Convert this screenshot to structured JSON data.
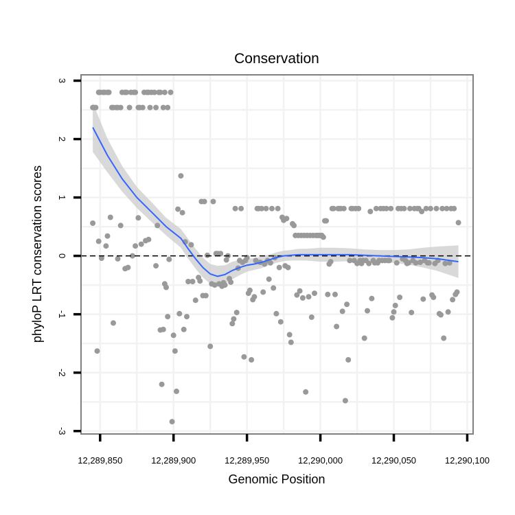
{
  "chart_data": {
    "type": "scatter",
    "title": "Conservation",
    "xlabel": "Genomic Position",
    "ylabel": "phyloP LRT conservation scores",
    "xlim": [
      12289837,
      12290104
    ],
    "ylim": [
      -3.05,
      3.1
    ],
    "x_ticks": [
      12289850,
      12289900,
      12289950,
      12290000,
      12290050,
      12290100
    ],
    "x_tick_labels": [
      "12,289,850",
      "12,289,900",
      "12,289,950",
      "12,290,000",
      "12,290,050",
      "12,290,100"
    ],
    "y_ticks": [
      -3,
      -2,
      -1,
      0,
      1,
      2,
      3
    ],
    "y_tick_labels": [
      "-3",
      "-2",
      "-1",
      "0",
      "1",
      "2",
      "3"
    ],
    "reference_line": {
      "y": 0,
      "style": "dashed",
      "color": "#000000"
    },
    "colors": {
      "points": "#999999",
      "smooth": "#3366ff",
      "confidence_band": "#cccccc",
      "panel_border": "#7f7f7f"
    },
    "points": [
      {
        "x": 12289845,
        "y": 2.54
      },
      {
        "x": 12289846,
        "y": 2.54
      },
      {
        "x": 12289847,
        "y": 2.54
      },
      {
        "x": 12289849,
        "y": 2.8
      },
      {
        "x": 12289850,
        "y": 2.8
      },
      {
        "x": 12289852,
        "y": 2.8
      },
      {
        "x": 12289853,
        "y": 2.8
      },
      {
        "x": 12289855,
        "y": 2.8
      },
      {
        "x": 12289856,
        "y": 2.8
      },
      {
        "x": 12289858,
        "y": 2.54
      },
      {
        "x": 12289859,
        "y": 2.54
      },
      {
        "x": 12289861,
        "y": 2.54
      },
      {
        "x": 12289862,
        "y": 2.54
      },
      {
        "x": 12289864,
        "y": 2.54
      },
      {
        "x": 12289865,
        "y": 2.8
      },
      {
        "x": 12289867,
        "y": 2.8
      },
      {
        "x": 12289868,
        "y": 2.8
      },
      {
        "x": 12289870,
        "y": 2.54
      },
      {
        "x": 12289871,
        "y": 2.8
      },
      {
        "x": 12289873,
        "y": 2.8
      },
      {
        "x": 12289874,
        "y": 2.8
      },
      {
        "x": 12289876,
        "y": 2.54
      },
      {
        "x": 12289877,
        "y": 2.54
      },
      {
        "x": 12289879,
        "y": 2.54
      },
      {
        "x": 12289880,
        "y": 2.8
      },
      {
        "x": 12289882,
        "y": 2.8
      },
      {
        "x": 12289883,
        "y": 2.8
      },
      {
        "x": 12289884,
        "y": 2.54
      },
      {
        "x": 12289885,
        "y": 2.8
      },
      {
        "x": 12289887,
        "y": 2.8
      },
      {
        "x": 12289888,
        "y": 2.54
      },
      {
        "x": 12289890,
        "y": 2.8
      },
      {
        "x": 12289891,
        "y": 2.8
      },
      {
        "x": 12289893,
        "y": 2.54
      },
      {
        "x": 12289894,
        "y": 2.8
      },
      {
        "x": 12289896,
        "y": 2.54
      },
      {
        "x": 12289898,
        "y": 2.8
      },
      {
        "x": 12289845,
        "y": 0.56
      },
      {
        "x": 12289848,
        "y": -1.63
      },
      {
        "x": 12289849,
        "y": 0.25
      },
      {
        "x": 12289851,
        "y": -0.04
      },
      {
        "x": 12289854,
        "y": 0.17
      },
      {
        "x": 12289855,
        "y": 0.34
      },
      {
        "x": 12289857,
        "y": 0.66
      },
      {
        "x": 12289859,
        "y": -1.15
      },
      {
        "x": 12289862,
        "y": -0.05
      },
      {
        "x": 12289864,
        "y": 0.52
      },
      {
        "x": 12289867,
        "y": -0.22
      },
      {
        "x": 12289869,
        "y": -0.2
      },
      {
        "x": 12289872,
        "y": 0.0
      },
      {
        "x": 12289874,
        "y": 0.17
      },
      {
        "x": 12289876,
        "y": 0.65
      },
      {
        "x": 12289878,
        "y": 0.2
      },
      {
        "x": 12289881,
        "y": 0.26
      },
      {
        "x": 12289883,
        "y": 0.28
      },
      {
        "x": 12289888,
        "y": -0.17
      },
      {
        "x": 12289889,
        "y": 0.52
      },
      {
        "x": 12289891,
        "y": -1.27
      },
      {
        "x": 12289892,
        "y": -2.2
      },
      {
        "x": 12289893,
        "y": -1.26
      },
      {
        "x": 12289894,
        "y": -0.48
      },
      {
        "x": 12289895,
        "y": -0.54
      },
      {
        "x": 12289896,
        "y": -1.04
      },
      {
        "x": 12289897,
        "y": -0.06
      },
      {
        "x": 12289899,
        "y": -2.84
      },
      {
        "x": 12289900,
        "y": -1.36
      },
      {
        "x": 12289901,
        "y": -1.63
      },
      {
        "x": 12289902,
        "y": -2.32
      },
      {
        "x": 12289903,
        "y": 0.8
      },
      {
        "x": 12289904,
        "y": -0.99
      },
      {
        "x": 12289905,
        "y": 1.37
      },
      {
        "x": 12289906,
        "y": 0.74
      },
      {
        "x": 12289907,
        "y": -1.26
      },
      {
        "x": 12289908,
        "y": 0.24
      },
      {
        "x": 12289909,
        "y": -1.04
      },
      {
        "x": 12289910,
        "y": -0.44
      },
      {
        "x": 12289912,
        "y": 0.19
      },
      {
        "x": 12289913,
        "y": -0.44
      },
      {
        "x": 12289915,
        "y": -0.76
      },
      {
        "x": 12289917,
        "y": -0.37
      },
      {
        "x": 12289918,
        "y": -0.43
      },
      {
        "x": 12289919,
        "y": 0.93
      },
      {
        "x": 12289920,
        "y": -0.68
      },
      {
        "x": 12289921,
        "y": 0.93
      },
      {
        "x": 12289922,
        "y": -0.68
      },
      {
        "x": 12289923,
        "y": 0.01
      },
      {
        "x": 12289925,
        "y": -1.55
      },
      {
        "x": 12289927,
        "y": 0.93
      },
      {
        "x": 12289926,
        "y": -0.48
      },
      {
        "x": 12289928,
        "y": -0.5
      },
      {
        "x": 12289929,
        "y": 0.04
      },
      {
        "x": 12289930,
        "y": 0.04
      },
      {
        "x": 12289931,
        "y": -0.48
      },
      {
        "x": 12289932,
        "y": 0.04
      },
      {
        "x": 12289933,
        "y": -0.52
      },
      {
        "x": 12289934,
        "y": -0.46
      },
      {
        "x": 12289935,
        "y": -0.5
      },
      {
        "x": 12289936,
        "y": -0.07
      },
      {
        "x": 12289937,
        "y": 0.0
      },
      {
        "x": 12289938,
        "y": -0.39
      },
      {
        "x": 12289939,
        "y": -0.45
      },
      {
        "x": 12289940,
        "y": -1.16
      },
      {
        "x": 12289941,
        "y": -1.08
      },
      {
        "x": 12289942,
        "y": 0.81
      },
      {
        "x": 12289943,
        "y": -0.97
      },
      {
        "x": 12289944,
        "y": -0.21
      },
      {
        "x": 12289945,
        "y": -0.08
      },
      {
        "x": 12289946,
        "y": 0.81
      },
      {
        "x": 12289947,
        "y": -0.11
      },
      {
        "x": 12289948,
        "y": -1.73
      },
      {
        "x": 12289949,
        "y": -0.08
      },
      {
        "x": 12289950,
        "y": -0.03
      },
      {
        "x": 12289951,
        "y": -0.64
      },
      {
        "x": 12289952,
        "y": -0.59
      },
      {
        "x": 12289953,
        "y": -1.78
      },
      {
        "x": 12289954,
        "y": -0.75
      },
      {
        "x": 12289955,
        "y": -0.7
      },
      {
        "x": 12289956,
        "y": -0.08
      },
      {
        "x": 12289957,
        "y": 0.81
      },
      {
        "x": 12289958,
        "y": 0.81
      },
      {
        "x": 12289959,
        "y": -0.11
      },
      {
        "x": 12289960,
        "y": 0.81
      },
      {
        "x": 12289961,
        "y": -0.62
      },
      {
        "x": 12289962,
        "y": -0.14
      },
      {
        "x": 12289963,
        "y": 0.81
      },
      {
        "x": 12289964,
        "y": -0.08
      },
      {
        "x": 12289965,
        "y": -0.4
      },
      {
        "x": 12289966,
        "y": -0.12
      },
      {
        "x": 12289967,
        "y": 0.81
      },
      {
        "x": 12289968,
        "y": -0.55
      },
      {
        "x": 12289969,
        "y": -0.03
      },
      {
        "x": 12289970,
        "y": -0.99
      },
      {
        "x": 12289971,
        "y": 0.81
      },
      {
        "x": 12289972,
        "y": -0.2
      },
      {
        "x": 12289973,
        "y": -1.13
      },
      {
        "x": 12289974,
        "y": 0.66
      },
      {
        "x": 12289975,
        "y": 0.61
      },
      {
        "x": 12289976,
        "y": -0.17
      },
      {
        "x": 12289977,
        "y": 0.64
      },
      {
        "x": 12289978,
        "y": -0.2
      },
      {
        "x": 12289979,
        "y": -1.35
      },
      {
        "x": 12289980,
        "y": -1.48
      },
      {
        "x": 12289981,
        "y": 0.55
      },
      {
        "x": 12289982,
        "y": 0.52
      },
      {
        "x": 12289983,
        "y": 0.35
      },
      {
        "x": 12289984,
        "y": -0.67
      },
      {
        "x": 12289985,
        "y": 0.35
      },
      {
        "x": 12289986,
        "y": -0.6
      },
      {
        "x": 12289987,
        "y": 0.35
      },
      {
        "x": 12289988,
        "y": -0.72
      },
      {
        "x": 12289989,
        "y": 0.35
      },
      {
        "x": 12289990,
        "y": -2.33
      },
      {
        "x": 12289991,
        "y": 0.35
      },
      {
        "x": 12289992,
        "y": -0.7
      },
      {
        "x": 12289993,
        "y": 0.35
      },
      {
        "x": 12289994,
        "y": -1.05
      },
      {
        "x": 12289995,
        "y": 0.35
      },
      {
        "x": 12289996,
        "y": -0.64
      },
      {
        "x": 12289997,
        "y": 0.35
      },
      {
        "x": 12289998,
        "y": 0.35
      },
      {
        "x": 12289999,
        "y": 0.35
      },
      {
        "x": 12290000,
        "y": 0.35
      },
      {
        "x": 12290001,
        "y": 0.35
      },
      {
        "x": 12290002,
        "y": 0.32
      },
      {
        "x": 12290003,
        "y": 0.6
      },
      {
        "x": 12290004,
        "y": 0.6
      },
      {
        "x": 12290005,
        "y": -0.66
      },
      {
        "x": 12290006,
        "y": -0.14
      },
      {
        "x": 12290007,
        "y": -0.1
      },
      {
        "x": 12290008,
        "y": 0.81
      },
      {
        "x": 12290009,
        "y": 0.81
      },
      {
        "x": 12290010,
        "y": -0.66
      },
      {
        "x": 12290011,
        "y": -1.21
      },
      {
        "x": 12290012,
        "y": 0.81
      },
      {
        "x": 12290013,
        "y": 0.81
      },
      {
        "x": 12290014,
        "y": 0.81
      },
      {
        "x": 12290015,
        "y": -0.95
      },
      {
        "x": 12290016,
        "y": 0.81
      },
      {
        "x": 12290017,
        "y": -2.48
      },
      {
        "x": 12290018,
        "y": -0.83
      },
      {
        "x": 12290019,
        "y": -1.78
      },
      {
        "x": 12290020,
        "y": -0.08
      },
      {
        "x": 12290021,
        "y": 0.81
      },
      {
        "x": 12290022,
        "y": 0.81
      },
      {
        "x": 12290023,
        "y": -0.08
      },
      {
        "x": 12290024,
        "y": 0.81
      },
      {
        "x": 12290025,
        "y": -0.13
      },
      {
        "x": 12290026,
        "y": 0.81
      },
      {
        "x": 12290027,
        "y": -0.08
      },
      {
        "x": 12290028,
        "y": -0.13
      },
      {
        "x": 12290029,
        "y": -0.08
      },
      {
        "x": 12290030,
        "y": -1.41
      },
      {
        "x": 12290031,
        "y": -0.08
      },
      {
        "x": 12290032,
        "y": -0.94
      },
      {
        "x": 12290033,
        "y": -0.13
      },
      {
        "x": 12290034,
        "y": 0.76
      },
      {
        "x": 12290035,
        "y": -0.73
      },
      {
        "x": 12290036,
        "y": -0.08
      },
      {
        "x": 12290037,
        "y": -0.12
      },
      {
        "x": 12290038,
        "y": 0.81
      },
      {
        "x": 12290039,
        "y": -0.12
      },
      {
        "x": 12290040,
        "y": -0.08
      },
      {
        "x": 12290041,
        "y": 0.81
      },
      {
        "x": 12290042,
        "y": -0.08
      },
      {
        "x": 12290043,
        "y": 0.81
      },
      {
        "x": 12290044,
        "y": -0.08
      },
      {
        "x": 12290045,
        "y": 0.81
      },
      {
        "x": 12290046,
        "y": -0.08
      },
      {
        "x": 12290047,
        "y": -0.08
      },
      {
        "x": 12290048,
        "y": 0.81
      },
      {
        "x": 12290049,
        "y": -1.06
      },
      {
        "x": 12290050,
        "y": -0.96
      },
      {
        "x": 12290051,
        "y": -0.85
      },
      {
        "x": 12290052,
        "y": -0.12
      },
      {
        "x": 12290053,
        "y": 0.81
      },
      {
        "x": 12290054,
        "y": -0.71
      },
      {
        "x": 12290055,
        "y": 0.81
      },
      {
        "x": 12290056,
        "y": -0.05
      },
      {
        "x": 12290057,
        "y": 0.81
      },
      {
        "x": 12290058,
        "y": -0.08
      },
      {
        "x": 12290059,
        "y": -0.13
      },
      {
        "x": 12290060,
        "y": -0.12
      },
      {
        "x": 12290061,
        "y": 0.81
      },
      {
        "x": 12290062,
        "y": -0.97
      },
      {
        "x": 12290063,
        "y": -0.08
      },
      {
        "x": 12290064,
        "y": 0.81
      },
      {
        "x": 12290065,
        "y": -0.12
      },
      {
        "x": 12290066,
        "y": 0.81
      },
      {
        "x": 12290067,
        "y": 0.81
      },
      {
        "x": 12290068,
        "y": -0.11
      },
      {
        "x": 12290069,
        "y": 0.76
      },
      {
        "x": 12290070,
        "y": -0.74
      },
      {
        "x": 12290071,
        "y": -0.08
      },
      {
        "x": 12290072,
        "y": 0.81
      },
      {
        "x": 12290073,
        "y": -0.12
      },
      {
        "x": 12290074,
        "y": -0.12
      },
      {
        "x": 12290075,
        "y": 0.81
      },
      {
        "x": 12290076,
        "y": -0.67
      },
      {
        "x": 12290077,
        "y": -0.71
      },
      {
        "x": 12290078,
        "y": -0.13
      },
      {
        "x": 12290079,
        "y": 0.81
      },
      {
        "x": 12290080,
        "y": -0.08
      },
      {
        "x": 12290081,
        "y": -0.99
      },
      {
        "x": 12290082,
        "y": -1.01
      },
      {
        "x": 12290083,
        "y": 0.81
      },
      {
        "x": 12290084,
        "y": -1.41
      },
      {
        "x": 12290085,
        "y": -0.13
      },
      {
        "x": 12290086,
        "y": 0.81
      },
      {
        "x": 12290087,
        "y": -0.96
      },
      {
        "x": 12290088,
        "y": -0.12
      },
      {
        "x": 12290089,
        "y": 0.81
      },
      {
        "x": 12290090,
        "y": -0.75
      },
      {
        "x": 12290091,
        "y": 0.81
      },
      {
        "x": 12290092,
        "y": -0.66
      },
      {
        "x": 12290093,
        "y": -0.62
      },
      {
        "x": 12290094,
        "y": 0.57
      }
    ],
    "smooth_line": {
      "x": [
        12289845,
        12289855,
        12289865,
        12289875,
        12289885,
        12289895,
        12289905,
        12289910,
        12289915,
        12289920,
        12289925,
        12289930,
        12289935,
        12289940,
        12289945,
        12289950,
        12289955,
        12289960,
        12289965,
        12289970,
        12289975,
        12289980,
        12289985,
        12289990,
        12289995,
        12290000,
        12290010,
        12290020,
        12290030,
        12290040,
        12290050,
        12290060,
        12290070,
        12290080,
        12290094
      ],
      "y": [
        2.2,
        1.72,
        1.32,
        1.0,
        0.75,
        0.5,
        0.3,
        0.12,
        -0.05,
        -0.2,
        -0.31,
        -0.35,
        -0.32,
        -0.25,
        -0.2,
        -0.16,
        -0.14,
        -0.11,
        -0.07,
        -0.03,
        0.0,
        0.01,
        0.02,
        0.02,
        0.02,
        0.02,
        0.02,
        0.02,
        0.01,
        0.0,
        -0.01,
        -0.02,
        -0.03,
        -0.05,
        -0.1
      ],
      "lower": [
        1.78,
        1.43,
        1.1,
        0.82,
        0.58,
        0.35,
        0.14,
        -0.05,
        -0.22,
        -0.37,
        -0.48,
        -0.53,
        -0.48,
        -0.4,
        -0.33,
        -0.27,
        -0.24,
        -0.21,
        -0.16,
        -0.12,
        -0.09,
        -0.08,
        -0.08,
        -0.08,
        -0.09,
        -0.1,
        -0.1,
        -0.09,
        -0.09,
        -0.1,
        -0.12,
        -0.15,
        -0.2,
        -0.26,
        -0.38
      ],
      "upper": [
        2.62,
        2.01,
        1.54,
        1.18,
        0.92,
        0.65,
        0.46,
        0.29,
        0.12,
        -0.03,
        -0.14,
        -0.17,
        -0.16,
        -0.1,
        -0.07,
        -0.05,
        -0.04,
        -0.01,
        0.02,
        0.06,
        0.09,
        0.1,
        0.12,
        0.12,
        0.13,
        0.14,
        0.14,
        0.13,
        0.11,
        0.1,
        0.1,
        0.11,
        0.14,
        0.16,
        0.18
      ]
    }
  }
}
